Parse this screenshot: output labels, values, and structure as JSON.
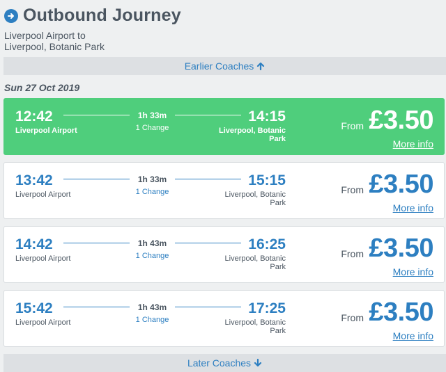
{
  "header": {
    "title": "Outbound Journey",
    "route_line1": "Liverpool Airport to",
    "route_line2": "Liverpool, Botanic Park"
  },
  "earlier_label": "Earlier Coaches",
  "later_label": "Later Coaches",
  "date": "Sun 27 Oct 2019",
  "colors": {
    "accent": "#2d7fc1",
    "selected": "#4fce7c",
    "text": "#4a5560",
    "background": "#eef0f1"
  },
  "journeys": [
    {
      "dep_time": "12:42",
      "dep_loc": "Liverpool Airport",
      "duration": "1h 33m",
      "changes": "1 Change",
      "arr_time": "14:15",
      "arr_loc_1": "Liverpool, Botanic",
      "arr_loc_2": "Park",
      "from_label": "From",
      "price": "£3.50",
      "more_info": "More info",
      "selected": true
    },
    {
      "dep_time": "13:42",
      "dep_loc": "Liverpool Airport",
      "duration": "1h 33m",
      "changes": "1 Change",
      "arr_time": "15:15",
      "arr_loc_1": "Liverpool, Botanic",
      "arr_loc_2": "Park",
      "from_label": "From",
      "price": "£3.50",
      "more_info": "More info",
      "selected": false
    },
    {
      "dep_time": "14:42",
      "dep_loc": "Liverpool Airport",
      "duration": "1h 43m",
      "changes": "1 Change",
      "arr_time": "16:25",
      "arr_loc_1": "Liverpool, Botanic",
      "arr_loc_2": "Park",
      "from_label": "From",
      "price": "£3.50",
      "more_info": "More info",
      "selected": false
    },
    {
      "dep_time": "15:42",
      "dep_loc": "Liverpool Airport",
      "duration": "1h 43m",
      "changes": "1 Change",
      "arr_time": "17:25",
      "arr_loc_1": "Liverpool, Botanic",
      "arr_loc_2": "Park",
      "from_label": "From",
      "price": "£3.50",
      "more_info": "More info",
      "selected": false
    }
  ]
}
